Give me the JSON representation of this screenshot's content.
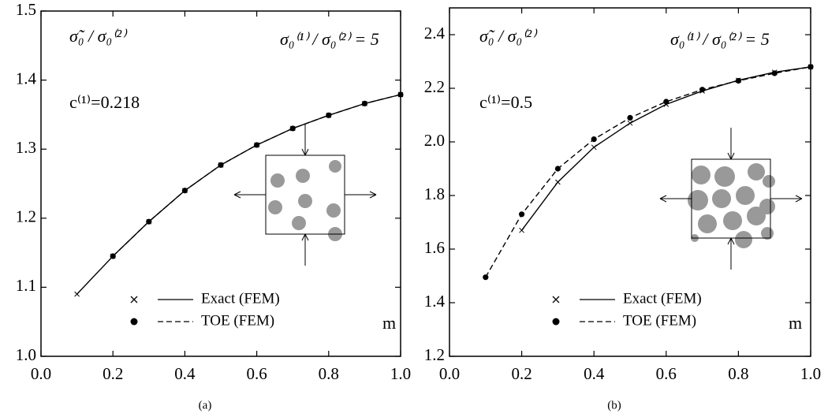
{
  "chart_data": [
    {
      "type": "line",
      "caption": "(a)",
      "ylabel": "σ̃₀ / σ₀⁽²⁾",
      "ratio_label": "σ₀⁽¹⁾ / σ₀⁽²⁾ = 5",
      "c_label": "c⁽¹⁾=0.218",
      "xlabel": "m",
      "xlim": [
        0,
        1
      ],
      "ylim": [
        1.0,
        1.5
      ],
      "xticks": [
        {
          "value": 0,
          "label": "0.0"
        },
        0.2,
        0.4,
        0.6,
        0.8,
        {
          "value": 1,
          "label": "1.0"
        }
      ],
      "yticks": [
        {
          "value": 1,
          "label": "1.0"
        },
        1.1,
        1.2,
        1.3,
        1.4,
        1.5
      ],
      "series": [
        {
          "name": "Exact (FEM)",
          "color": "#000000",
          "dash": "solid",
          "marker": "x",
          "x": [
            0.1,
            0.2,
            0.3,
            0.4,
            0.5,
            0.6,
            0.7,
            0.8,
            0.9,
            1.0
          ],
          "values": [
            1.09,
            1.145,
            1.195,
            1.24,
            1.277,
            1.306,
            1.33,
            1.349,
            1.366,
            1.379
          ]
        },
        {
          "name": "TOE (FEM)",
          "color": "#000000",
          "dash": "dashed",
          "marker": "dot",
          "x": [
            0.2,
            0.3,
            0.4,
            0.5,
            0.6,
            0.7,
            0.8,
            0.9,
            1.0
          ],
          "values": [
            1.145,
            1.195,
            1.24,
            1.277,
            1.306,
            1.33,
            1.349,
            1.366,
            1.379
          ]
        }
      ]
    },
    {
      "type": "line",
      "caption": "(b)",
      "ylabel": "σ̃₀ / σ₀⁽²⁾",
      "ratio_label": "σ₀⁽¹⁾ / σ₀⁽²⁾ = 5",
      "c_label": "c⁽¹⁾=0.5",
      "xlabel": "m",
      "xlim": [
        0,
        1
      ],
      "ylim": [
        1.2,
        2.5
      ],
      "xticks": [
        {
          "value": 0,
          "label": "0.0"
        },
        0.2,
        0.4,
        0.6,
        0.8,
        {
          "value": 1,
          "label": "1.0"
        }
      ],
      "yticks": [
        1.2,
        1.4,
        1.6,
        1.8,
        {
          "value": 2,
          "label": "2.0"
        },
        2.2,
        2.4
      ],
      "series": [
        {
          "name": "Exact (FEM)",
          "color": "#000000",
          "dash": "solid",
          "marker": "x",
          "x": [
            0.2,
            0.3,
            0.4,
            0.5,
            0.6,
            0.7,
            0.8,
            0.9,
            1.0
          ],
          "values": [
            1.67,
            1.85,
            1.98,
            2.07,
            2.14,
            2.19,
            2.23,
            2.26,
            2.28
          ]
        },
        {
          "name": "TOE (FEM)",
          "color": "#000000",
          "dash": "dashed",
          "marker": "dot",
          "x": [
            0.1,
            0.2,
            0.3,
            0.4,
            0.5,
            0.6,
            0.7,
            0.8,
            0.9,
            1.0
          ],
          "values": [
            1.495,
            1.73,
            1.9,
            2.01,
            2.09,
            2.15,
            2.195,
            2.228,
            2.256,
            2.28
          ]
        }
      ]
    }
  ]
}
